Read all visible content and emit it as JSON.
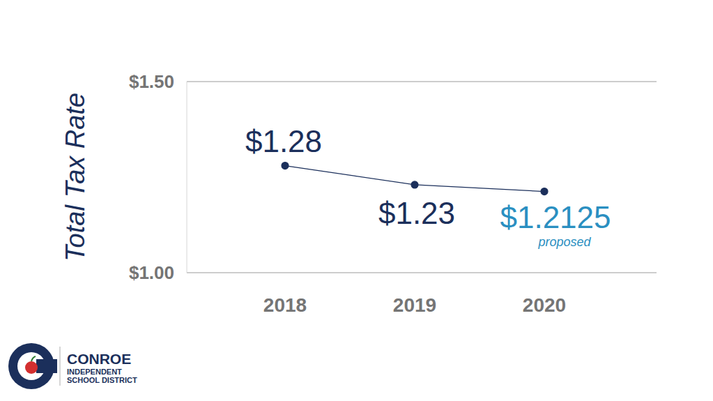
{
  "chart_data": {
    "type": "line",
    "categories": [
      "2018",
      "2019",
      "2020"
    ],
    "values": [
      1.28,
      1.23,
      1.2125
    ],
    "value_labels": [
      "$1.28",
      "$1.23",
      "$1.2125"
    ],
    "color": "#1b2f5b",
    "ylabel": "Total Tax Rate",
    "ylim": [
      1.0,
      1.5
    ],
    "yticks": [
      {
        "value": 1.0,
        "label": "$1.00"
      },
      {
        "value": 1.5,
        "label": "$1.50"
      }
    ],
    "grid": true,
    "data_labels": true,
    "marker": "circle",
    "annotations": [
      {
        "category": "2020",
        "text": "proposed"
      }
    ]
  },
  "logo": {
    "name": "CONROE",
    "lines": [
      "INDEPENDENT",
      "SCHOOL DISTRICT"
    ]
  }
}
